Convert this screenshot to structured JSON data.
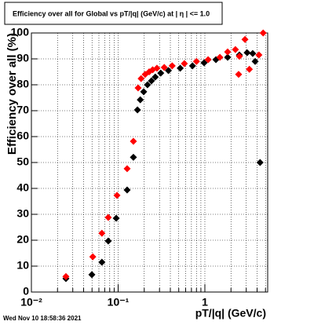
{
  "chart_data": {
    "type": "scatter",
    "title": "Efficiency over all for Global vs pT/|q| (GeV/c) at |  η  | <= 1.0",
    "x_label": "pT/|q| (GeV/c)",
    "y_label": "Efficiency over all (%)",
    "timestamp": "Wed Nov 10 18:58:36 2021",
    "log_x": true,
    "grid": true,
    "xlim": [
      0.01,
      5.3
    ],
    "ylim": [
      0,
      100
    ],
    "xticks": [
      {
        "value": 0.01,
        "label": "10⁻²"
      },
      {
        "value": 0.1,
        "label": "10⁻¹"
      },
      1
    ],
    "xminor_ticks": [
      0.02,
      0.03,
      0.04,
      0.05,
      0.06,
      0.07,
      0.08,
      0.09,
      0.2,
      0.3,
      0.4,
      0.5,
      0.6,
      0.7,
      0.8,
      0.9,
      2,
      3,
      4,
      5
    ],
    "yticks": [
      0,
      10,
      20,
      30,
      40,
      50,
      60,
      70,
      80,
      90,
      100
    ],
    "series": [
      {
        "color": "#000000",
        "x": [
          0.025,
          0.0498,
          0.065,
          0.077,
          0.095,
          0.127,
          0.15,
          0.167,
          0.18,
          0.197,
          0.218,
          0.242,
          0.268,
          0.31,
          0.38,
          0.52,
          0.72,
          0.98,
          1.34,
          1.83,
          2.5,
          3.07,
          3.56,
          3.8,
          4.33
        ],
        "values": [
          5.2,
          6.7,
          11.5,
          19.7,
          28.5,
          39.4,
          52,
          70.3,
          74.2,
          77.3,
          80,
          81.5,
          83,
          84.5,
          85.5,
          86.4,
          87.3,
          88.5,
          89.7,
          90.6,
          91.5,
          92.4,
          92.1,
          89,
          50
        ]
      },
      {
        "color": "#ff0000",
        "x": [
          0.025,
          0.051,
          0.065,
          0.077,
          0.097,
          0.127,
          0.15,
          0.17,
          0.184,
          0.205,
          0.228,
          0.25,
          0.28,
          0.34,
          0.42,
          0.58,
          0.8,
          1.09,
          1.49,
          1.83,
          2.25,
          2.45,
          2.5,
          2.9,
          3.26,
          4.2,
          4.7
        ],
        "values": [
          6,
          13.6,
          22.7,
          28.8,
          37.3,
          47.6,
          58.2,
          78.8,
          82.4,
          84,
          85,
          85.8,
          86.4,
          86.7,
          87.3,
          88.2,
          89,
          89.7,
          90.6,
          92.7,
          93.6,
          84,
          91,
          97.5,
          86,
          91.5,
          100
        ]
      }
    ]
  }
}
